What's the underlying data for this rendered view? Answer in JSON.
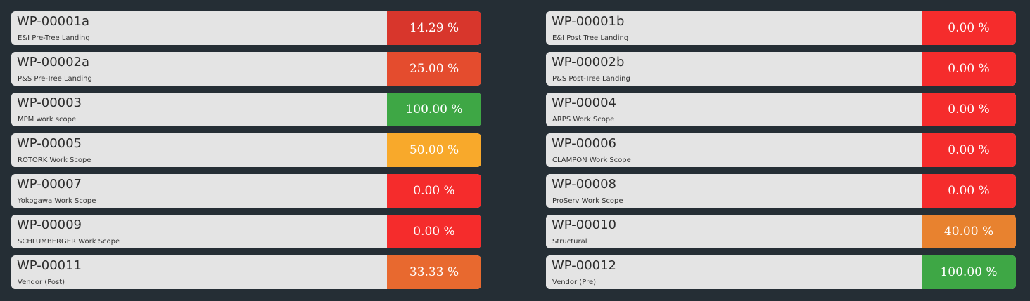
{
  "colors": {
    "background": "#252e35",
    "card": "#e4e4e4",
    "red": "#f52c2c",
    "green": "#3ea745",
    "yellow": "#f8a92b",
    "orange": "#e8822f",
    "dark_red": "#d8362c",
    "orange_red": "#e44c2e",
    "burnt_orange": "#e8692f"
  },
  "left": [
    {
      "code": "WP-00001a",
      "desc": "E&I Pre-Tree Landing",
      "pct": "14.29 %",
      "color": "#d8362c"
    },
    {
      "code": "WP-00002a",
      "desc": "P&S Pre-Tree Landing",
      "pct": "25.00 %",
      "color": "#e44c2e"
    },
    {
      "code": "WP-00003",
      "desc": "MPM work scope",
      "pct": "100.00 %",
      "color": "#3ea745"
    },
    {
      "code": "WP-00005",
      "desc": "ROTORK Work Scope",
      "pct": "50.00 %",
      "color": "#f8a92b"
    },
    {
      "code": "WP-00007",
      "desc": "Yokogawa Work Scope",
      "pct": "0.00 %",
      "color": "#f52c2c"
    },
    {
      "code": "WP-00009",
      "desc": "SCHLUMBERGER Work Scope",
      "pct": "0.00 %",
      "color": "#f52c2c"
    },
    {
      "code": "WP-00011",
      "desc": "Vendor (Post)",
      "pct": "33.33 %",
      "color": "#e8692f"
    }
  ],
  "right": [
    {
      "code": "WP-00001b",
      "desc": "E&I Post Tree Landing",
      "pct": "0.00 %",
      "color": "#f52c2c"
    },
    {
      "code": "WP-00002b",
      "desc": "P&S Post-Tree Landing",
      "pct": "0.00 %",
      "color": "#f52c2c"
    },
    {
      "code": "WP-00004",
      "desc": "ARPS Work Scope",
      "pct": "0.00 %",
      "color": "#f52c2c"
    },
    {
      "code": "WP-00006",
      "desc": "CLAMPON Work Scope",
      "pct": "0.00 %",
      "color": "#f52c2c"
    },
    {
      "code": "WP-00008",
      "desc": "ProServ Work Scope",
      "pct": "0.00 %",
      "color": "#f52c2c"
    },
    {
      "code": "WP-00010",
      "desc": "Structural",
      "pct": "40.00 %",
      "color": "#e8822f"
    },
    {
      "code": "WP-00012",
      "desc": "Vendor (Pre)",
      "pct": "100.00 %",
      "color": "#3ea745"
    }
  ]
}
